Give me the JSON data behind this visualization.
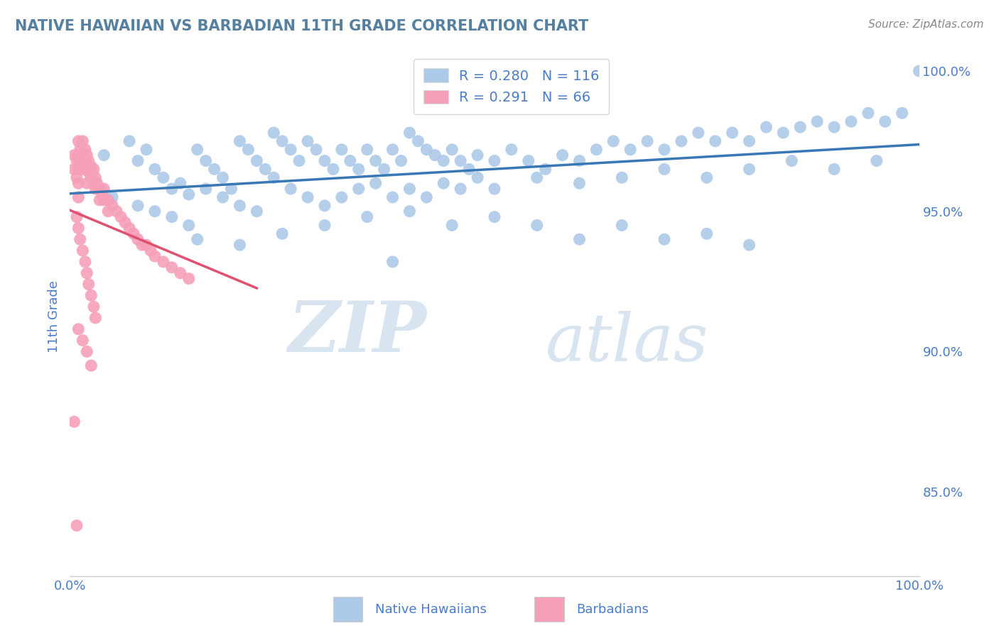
{
  "title": "NATIVE HAWAIIAN VS BARBADIAN 11TH GRADE CORRELATION CHART",
  "source": "Source: ZipAtlas.com",
  "ylabel": "11th Grade",
  "blue_R": 0.28,
  "blue_N": 116,
  "pink_R": 0.291,
  "pink_N": 66,
  "blue_color": "#adc9e8",
  "pink_color": "#f5a0b8",
  "trendline_blue": "#3a78b5",
  "trendline_pink": "#e05070",
  "legend_text_color": "#4a7cc7",
  "title_color": "#5580a0",
  "watermark_zip": "ZIP",
  "watermark_atlas": "atlas",
  "watermark_color": "#d8e4f0",
  "background_color": "#ffffff",
  "grid_color": "#c8c8c8",
  "xlim": [
    0.0,
    1.0
  ],
  "ylim": [
    0.82,
    1.005
  ],
  "yticks": [
    0.85,
    0.9,
    0.95,
    1.0
  ],
  "ytick_labels": [
    "85.0%",
    "90.0%",
    "95.0%",
    "100.0%"
  ],
  "blue_scatter_x": [
    0.04,
    0.07,
    0.08,
    0.09,
    0.1,
    0.11,
    0.12,
    0.13,
    0.14,
    0.15,
    0.16,
    0.17,
    0.18,
    0.19,
    0.2,
    0.21,
    0.22,
    0.23,
    0.24,
    0.25,
    0.26,
    0.27,
    0.28,
    0.29,
    0.3,
    0.31,
    0.32,
    0.33,
    0.34,
    0.35,
    0.36,
    0.37,
    0.38,
    0.39,
    0.4,
    0.41,
    0.42,
    0.43,
    0.44,
    0.45,
    0.46,
    0.47,
    0.48,
    0.5,
    0.52,
    0.54,
    0.56,
    0.58,
    0.6,
    0.62,
    0.64,
    0.66,
    0.68,
    0.7,
    0.72,
    0.74,
    0.76,
    0.78,
    0.8,
    0.82,
    0.84,
    0.86,
    0.88,
    0.9,
    0.92,
    0.94,
    0.96,
    0.98,
    1.0,
    0.05,
    0.08,
    0.1,
    0.12,
    0.14,
    0.16,
    0.18,
    0.2,
    0.22,
    0.24,
    0.26,
    0.28,
    0.3,
    0.32,
    0.34,
    0.36,
    0.38,
    0.4,
    0.42,
    0.44,
    0.46,
    0.48,
    0.5,
    0.55,
    0.6,
    0.65,
    0.7,
    0.75,
    0.8,
    0.85,
    0.9,
    0.95,
    0.15,
    0.2,
    0.25,
    0.3,
    0.35,
    0.4,
    0.45,
    0.5,
    0.55,
    0.6,
    0.65,
    0.7,
    0.75,
    0.8,
    0.38
  ],
  "blue_scatter_y": [
    0.97,
    0.975,
    0.968,
    0.972,
    0.965,
    0.962,
    0.958,
    0.96,
    0.956,
    0.972,
    0.968,
    0.965,
    0.962,
    0.958,
    0.975,
    0.972,
    0.968,
    0.965,
    0.978,
    0.975,
    0.972,
    0.968,
    0.975,
    0.972,
    0.968,
    0.965,
    0.972,
    0.968,
    0.965,
    0.972,
    0.968,
    0.965,
    0.972,
    0.968,
    0.978,
    0.975,
    0.972,
    0.97,
    0.968,
    0.972,
    0.968,
    0.965,
    0.97,
    0.968,
    0.972,
    0.968,
    0.965,
    0.97,
    0.968,
    0.972,
    0.975,
    0.972,
    0.975,
    0.972,
    0.975,
    0.978,
    0.975,
    0.978,
    0.975,
    0.98,
    0.978,
    0.98,
    0.982,
    0.98,
    0.982,
    0.985,
    0.982,
    0.985,
    1.0,
    0.955,
    0.952,
    0.95,
    0.948,
    0.945,
    0.958,
    0.955,
    0.952,
    0.95,
    0.962,
    0.958,
    0.955,
    0.952,
    0.955,
    0.958,
    0.96,
    0.955,
    0.958,
    0.955,
    0.96,
    0.958,
    0.962,
    0.958,
    0.962,
    0.96,
    0.962,
    0.965,
    0.962,
    0.965,
    0.968,
    0.965,
    0.968,
    0.94,
    0.938,
    0.942,
    0.945,
    0.948,
    0.95,
    0.945,
    0.948,
    0.945,
    0.94,
    0.945,
    0.94,
    0.942,
    0.938,
    0.932
  ],
  "pink_scatter_x": [
    0.005,
    0.005,
    0.008,
    0.008,
    0.01,
    0.01,
    0.01,
    0.01,
    0.01,
    0.012,
    0.012,
    0.015,
    0.015,
    0.015,
    0.018,
    0.018,
    0.02,
    0.02,
    0.02,
    0.022,
    0.022,
    0.025,
    0.025,
    0.028,
    0.028,
    0.03,
    0.03,
    0.032,
    0.035,
    0.035,
    0.038,
    0.04,
    0.04,
    0.045,
    0.045,
    0.05,
    0.055,
    0.06,
    0.065,
    0.07,
    0.075,
    0.08,
    0.085,
    0.09,
    0.095,
    0.1,
    0.11,
    0.12,
    0.13,
    0.14,
    0.008,
    0.01,
    0.012,
    0.015,
    0.018,
    0.02,
    0.022,
    0.025,
    0.028,
    0.03,
    0.01,
    0.015,
    0.02,
    0.025,
    0.005,
    0.008
  ],
  "pink_scatter_y": [
    0.97,
    0.965,
    0.968,
    0.962,
    0.975,
    0.97,
    0.965,
    0.96,
    0.955,
    0.972,
    0.968,
    0.975,
    0.97,
    0.965,
    0.972,
    0.968,
    0.97,
    0.965,
    0.96,
    0.968,
    0.964,
    0.966,
    0.962,
    0.965,
    0.96,
    0.962,
    0.958,
    0.96,
    0.958,
    0.954,
    0.956,
    0.958,
    0.954,
    0.954,
    0.95,
    0.952,
    0.95,
    0.948,
    0.946,
    0.944,
    0.942,
    0.94,
    0.938,
    0.938,
    0.936,
    0.934,
    0.932,
    0.93,
    0.928,
    0.926,
    0.948,
    0.944,
    0.94,
    0.936,
    0.932,
    0.928,
    0.924,
    0.92,
    0.916,
    0.912,
    0.908,
    0.904,
    0.9,
    0.895,
    0.875,
    0.838
  ]
}
